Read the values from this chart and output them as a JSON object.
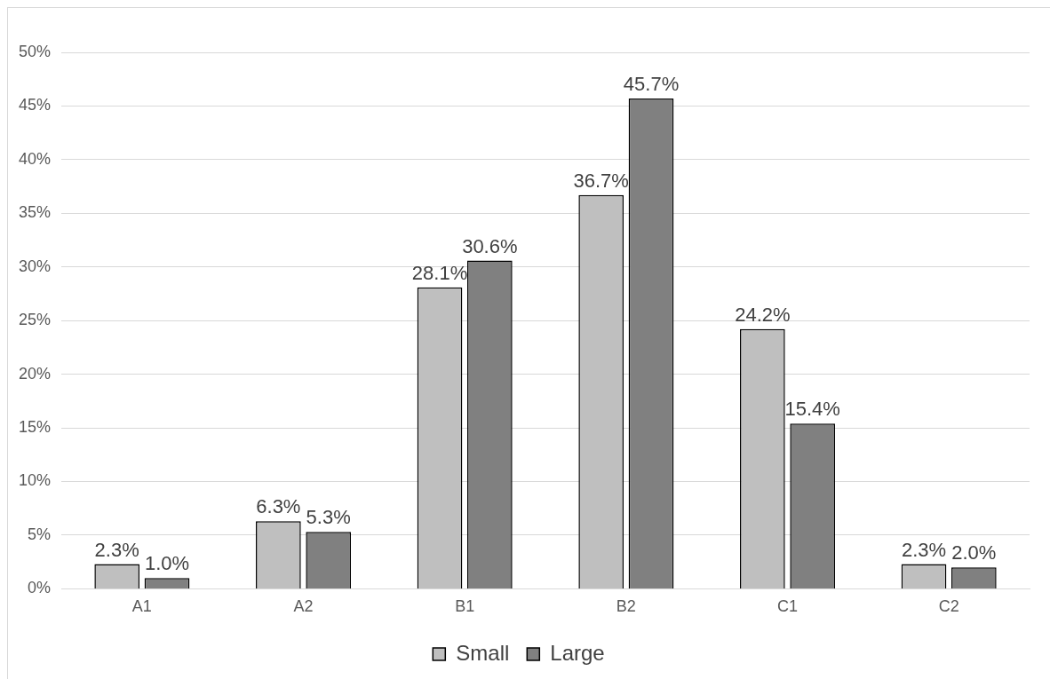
{
  "chart_data": {
    "type": "bar",
    "categories": [
      "A1",
      "A2",
      "B1",
      "B2",
      "C1",
      "C2"
    ],
    "series": [
      {
        "name": "Small",
        "color": "#bfbfbf",
        "values": [
          2.3,
          6.3,
          28.1,
          36.7,
          24.2,
          2.3
        ],
        "value_labels": [
          "2.3%",
          "6.3%",
          "28.1%",
          "36.7%",
          "24.2%",
          "2.3%"
        ]
      },
      {
        "name": "Large",
        "color": "#808080",
        "values": [
          1.0,
          5.3,
          30.6,
          45.7,
          15.4,
          2.0
        ],
        "value_labels": [
          "1.0%",
          "5.3%",
          "30.6%",
          "45.7%",
          "15.4%",
          "2.0%"
        ]
      }
    ],
    "ylim": [
      0,
      50
    ],
    "yticks": [
      {
        "value": 0,
        "label": "0%"
      },
      {
        "value": 5,
        "label": "5%"
      },
      {
        "value": 10,
        "label": "10%"
      },
      {
        "value": 15,
        "label": "15%"
      },
      {
        "value": 20,
        "label": "20%"
      },
      {
        "value": 25,
        "label": "25%"
      },
      {
        "value": 30,
        "label": "30%"
      },
      {
        "value": 35,
        "label": "35%"
      },
      {
        "value": 40,
        "label": "40%"
      },
      {
        "value": 45,
        "label": "45%"
      },
      {
        "value": 50,
        "label": "50%"
      }
    ],
    "grid": "y",
    "legend": "bottom"
  }
}
